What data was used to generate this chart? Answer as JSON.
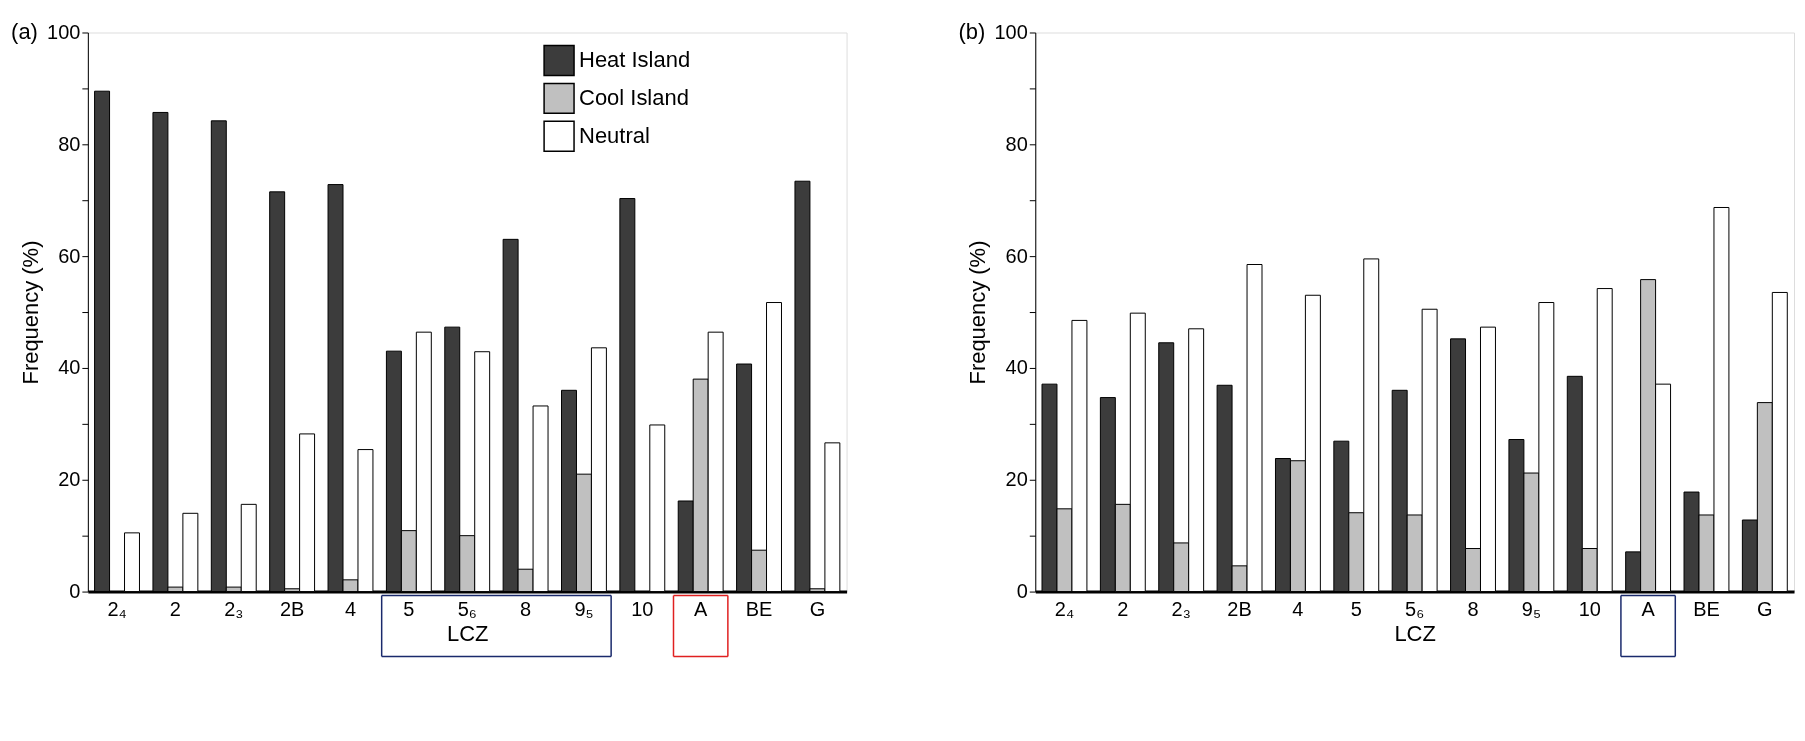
{
  "chart_data": [
    {
      "type": "bar",
      "annotations": [
        "(a)"
      ],
      "xlabel": "LCZ",
      "ylabel": "Frequency (%)",
      "categories": [
        "2₄",
        "2",
        "2₃",
        "2B",
        "4",
        "5",
        "5₆",
        "8",
        "9₅",
        "10",
        "A",
        "BE",
        "G"
      ],
      "series": [
        {
          "name": "Heat Island",
          "color": "#3c3c3c",
          "values": [
            89.5,
            85.7,
            84.2,
            71.5,
            72.8,
            43,
            47.3,
            63,
            36,
            70.3,
            16.2,
            40.7,
            73.4
          ]
        },
        {
          "name": "Cool Island",
          "color": "#c0c0c0",
          "values": [
            0,
            0.8,
            0.8,
            0.5,
            2.1,
            10.9,
            10,
            4,
            21,
            0,
            38,
            7.4,
            0.5
          ]
        },
        {
          "name": "Neutral",
          "color": "#ffffff",
          "values": [
            10.5,
            14,
            15.6,
            28.2,
            25.4,
            46.4,
            42.9,
            33.2,
            43.6,
            29.8,
            46.4,
            51.7,
            26.6
          ]
        }
      ],
      "ylim": [
        0,
        100
      ],
      "yticks": [
        0,
        {
          "value": 10,
          "label": null
        },
        20,
        {
          "value": 30,
          "label": null
        },
        40,
        {
          "value": 50,
          "label": null
        },
        60,
        {
          "value": 70,
          "label": null
        },
        80,
        {
          "value": 90,
          "label": null
        },
        100
      ],
      "legend": "top right",
      "grid": false
    },
    {
      "type": "bar",
      "annotations": [
        "(b)"
      ],
      "xlabel": "LCZ",
      "ylabel": "Frequency (%)",
      "categories": [
        "2₄",
        "2",
        "2₃",
        "2B",
        "4",
        "5",
        "5₆",
        "8",
        "9₅",
        "10",
        "A",
        "BE",
        "G"
      ],
      "series": [
        {
          "name": "Heat Island",
          "color": "#3c3c3c",
          "values": [
            37.1,
            34.7,
            44.5,
            36.9,
            23.8,
            26.9,
            36,
            45.2,
            27.2,
            38.5,
            7.1,
            17.8,
            12.8
          ]
        },
        {
          "name": "Cool Island",
          "color": "#c0c0c0",
          "values": [
            14.8,
            15.6,
            8.7,
            4.6,
            23.4,
            14.1,
            13.7,
            7.7,
            21.2,
            7.7,
            55.8,
            13.7,
            33.8
          ]
        },
        {
          "name": "Neutral",
          "color": "#ffffff",
          "values": [
            48.5,
            49.8,
            47,
            58.5,
            53,
            59.5,
            50.5,
            47.3,
            51.7,
            54.2,
            37.1,
            68.7,
            53.5
          ]
        }
      ],
      "ylim": [
        0,
        100
      ],
      "yticks": [
        0,
        {
          "value": 10,
          "label": null
        },
        20,
        {
          "value": 30,
          "label": null
        },
        40,
        {
          "value": 50,
          "label": null
        },
        60,
        {
          "value": 70,
          "label": null
        },
        80,
        {
          "value": 90,
          "label": null
        },
        100
      ],
      "legend": "top right",
      "grid": false
    }
  ]
}
